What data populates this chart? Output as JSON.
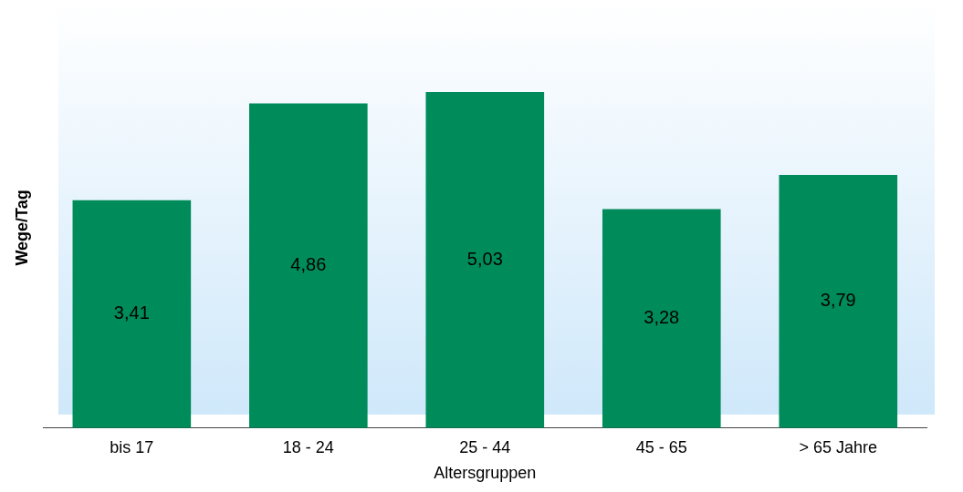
{
  "chart_data": {
    "type": "bar",
    "xlabel": "Altersgruppen",
    "ylabel": "Wege/Tag",
    "categories": [
      "bis 17",
      "18 - 24",
      "25 - 44",
      "45 - 65",
      "> 65 Jahre"
    ],
    "values": [
      3.41,
      4.86,
      5.03,
      3.28,
      3.79
    ],
    "value_labels": [
      "3,41",
      "4,86",
      "5,03",
      "3,28",
      "3,79"
    ],
    "color": "#008c5a",
    "grid": false,
    "legend": false,
    "tick_labels": "x"
  }
}
